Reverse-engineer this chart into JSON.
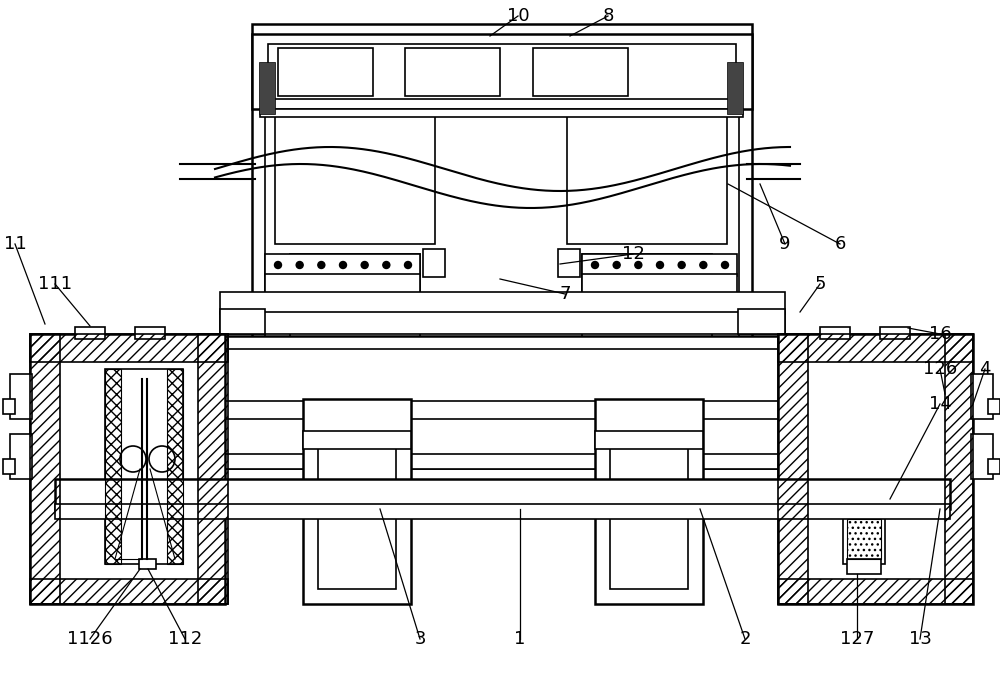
{
  "bg_color": "#ffffff",
  "line_color": "#000000",
  "fig_width": 10.0,
  "fig_height": 6.74,
  "lw": 1.2,
  "lw2": 1.8
}
